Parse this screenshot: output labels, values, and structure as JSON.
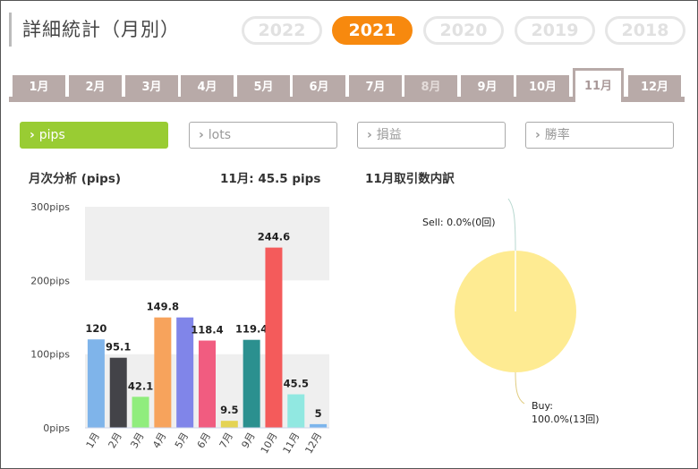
{
  "header": {
    "title": "詳細統計（月別）"
  },
  "years": [
    "2022",
    "2021",
    "2020",
    "2019",
    "2018"
  ],
  "months": [
    "1月",
    "2月",
    "3月",
    "4月",
    "5月",
    "6月",
    "7月",
    "8月",
    "9月",
    "10月",
    "11月",
    "12月"
  ],
  "disabled_month": "8月",
  "selected_month": "11月",
  "metrics": [
    "pips",
    "lots",
    "損益",
    "勝率"
  ],
  "chart_title": "月次分析 (pips)",
  "month_summary": "11月:  45.5 pips",
  "pie_title": "11月取引数内訳",
  "chart_data": [
    {
      "type": "bar",
      "categories": [
        "1月",
        "2月",
        "3月",
        "4月",
        "5月",
        "6月",
        "7月",
        "9月",
        "10月",
        "11月",
        "12月"
      ],
      "values": [
        120,
        95.1,
        42.1,
        149.8,
        149.8,
        118.4,
        9.5,
        119.4,
        244.6,
        45.5,
        5
      ],
      "value_labels": [
        "120",
        "95.1",
        "42.1",
        "149.8",
        "",
        "118.4",
        "9.5",
        "119.4",
        "244.6",
        "45.5",
        "5"
      ],
      "colors": [
        "#7fb4ea",
        "#434348",
        "#90ed7d",
        "#f7a35c",
        "#8085e9",
        "#f15c80",
        "#e4d354",
        "#2b908f",
        "#f45b5b",
        "#91e8e1",
        "#7cb5ec"
      ],
      "yticks": [
        "0pips",
        "100pips",
        "200pips",
        "300pips"
      ],
      "ylim": [
        0,
        300
      ]
    },
    {
      "type": "pie",
      "slices": [
        {
          "name": "Sell",
          "percent": 0.0,
          "count": 0,
          "label": "Sell: 0.0%(0回)"
        },
        {
          "name": "Buy",
          "percent": 100.0,
          "count": 13,
          "label_line1": "Buy:",
          "label_line2": "100.0%(13回)"
        }
      ],
      "colors": {
        "buy": "#feeb92",
        "sell": "#ffffff"
      }
    }
  ],
  "colors": {
    "accent": "#f7890e",
    "metric_active": "#99cc33",
    "tab": "#b8aaa8"
  }
}
